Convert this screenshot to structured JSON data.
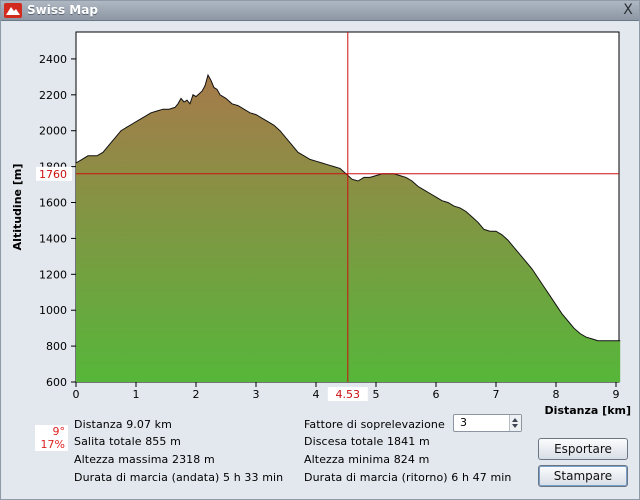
{
  "window": {
    "title": "Swiss Map",
    "close_glyph": "X",
    "icon": "swiss-map-logo-icon"
  },
  "chart_data": {
    "type": "area",
    "xlabel": "Distanza [km]",
    "ylabel": "Altitudine [m]",
    "xlim": [
      0,
      9.07
    ],
    "ylim": [
      600,
      2550
    ],
    "x_ticks": [
      0,
      1,
      2,
      3,
      4,
      5,
      6,
      7,
      8,
      9
    ],
    "y_ticks": [
      600,
      800,
      1000,
      1200,
      1400,
      1600,
      1800,
      2000,
      2200,
      2400
    ],
    "cursor": {
      "x": 4.53,
      "y": 1760,
      "x_label": "4.53",
      "y_label": "1760"
    },
    "fill_top_color": "#a67a4a",
    "fill_bottom_color": "#56b63a",
    "cursor_color": "#cc1111",
    "series": [
      {
        "x": [
          0,
          0.1,
          0.2,
          0.35,
          0.45,
          0.55,
          0.65,
          0.75,
          0.85,
          0.95,
          1.05,
          1.15,
          1.25,
          1.35,
          1.45,
          1.55,
          1.65,
          1.7,
          1.75,
          1.8,
          1.85,
          1.9,
          1.95,
          2.0,
          2.1,
          2.15,
          2.2,
          2.25,
          2.3,
          2.35,
          2.4,
          2.5,
          2.6,
          2.7,
          2.8,
          2.9,
          3.0,
          3.1,
          3.2,
          3.3,
          3.4,
          3.5,
          3.6,
          3.7,
          3.8,
          3.9,
          4.0,
          4.1,
          4.2,
          4.3,
          4.4,
          4.5,
          4.6,
          4.7,
          4.8,
          4.9,
          5.0,
          5.1,
          5.2,
          5.3,
          5.4,
          5.5,
          5.6,
          5.7,
          5.8,
          5.9,
          6.0,
          6.1,
          6.2,
          6.3,
          6.4,
          6.5,
          6.6,
          6.7,
          6.8,
          6.9,
          7.0,
          7.1,
          7.2,
          7.3,
          7.4,
          7.5,
          7.6,
          7.7,
          7.8,
          7.9,
          8.0,
          8.1,
          8.2,
          8.3,
          8.4,
          8.5,
          8.6,
          8.7,
          8.8,
          8.9,
          9.0,
          9.07
        ],
        "y": [
          1820,
          1840,
          1860,
          1860,
          1880,
          1920,
          1960,
          2000,
          2020,
          2040,
          2060,
          2080,
          2100,
          2110,
          2120,
          2120,
          2130,
          2150,
          2180,
          2160,
          2170,
          2150,
          2200,
          2190,
          2220,
          2250,
          2310,
          2280,
          2240,
          2230,
          2200,
          2180,
          2150,
          2140,
          2120,
          2100,
          2090,
          2070,
          2050,
          2030,
          2000,
          1960,
          1920,
          1880,
          1860,
          1840,
          1830,
          1820,
          1810,
          1800,
          1790,
          1760,
          1730,
          1720,
          1740,
          1740,
          1750,
          1760,
          1760,
          1760,
          1750,
          1740,
          1720,
          1690,
          1670,
          1650,
          1630,
          1610,
          1600,
          1580,
          1570,
          1550,
          1520,
          1490,
          1450,
          1440,
          1440,
          1420,
          1390,
          1350,
          1310,
          1270,
          1230,
          1180,
          1130,
          1080,
          1030,
          980,
          940,
          900,
          870,
          850,
          840,
          830,
          830,
          830,
          830,
          830
        ]
      }
    ]
  },
  "slope": {
    "degrees": "9°",
    "percent": "17%"
  },
  "stats": {
    "distanza": "Distanza 9.07 km",
    "salita": "Salita totale  855 m",
    "altezza_max": "Altezza massima  2318 m",
    "durata_andata": "Durata di marcia (andata)  5 h 33 min",
    "fattore_label": "Fattore di soprelevazione",
    "discesa": "Discesa totale  1841 m",
    "altezza_min": "Altezza minima  824 m",
    "durata_ritorno": "Durata di marcia (ritorno)  6 h 47 min"
  },
  "fattore": {
    "value": "3"
  },
  "buttons": {
    "esportare": "Esportare",
    "stampare": "Stampare"
  }
}
